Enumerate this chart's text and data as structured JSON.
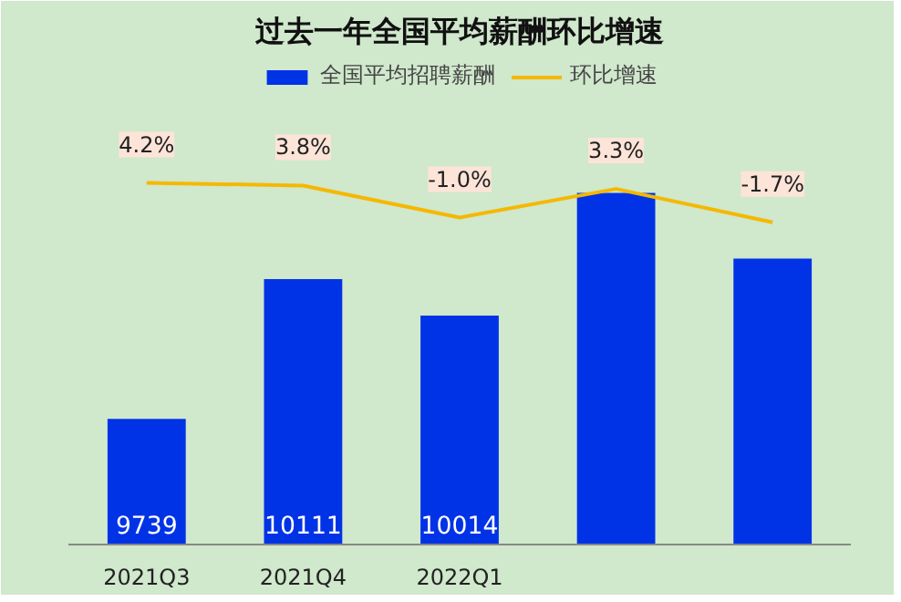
{
  "chart_data": {
    "type": "bar",
    "title": "过去一年全国平均薪酬环比增速",
    "categories": [
      "2021Q3",
      "2021Q4",
      "2022Q1",
      null,
      null
    ],
    "series": [
      {
        "name": "全国平均招聘薪酬",
        "color": "#0033e6",
        "values": [
          9739,
          10111,
          10014,
          10340,
          10165
        ],
        "value_labels": [
          "9739",
          "10111",
          "10014",
          null,
          null
        ]
      },
      {
        "name": "环比增速",
        "type": "line",
        "axis": "y2",
        "color": "#f5b800",
        "values": [
          4.2,
          3.8,
          -1.0,
          3.3,
          -1.7
        ],
        "value_labels": [
          "4.2%",
          "3.8%",
          "-1.0%",
          "3.3%",
          "-1.7%"
        ]
      }
    ],
    "ylim": [
      9405,
      10700
    ],
    "y2lim": [
      -50,
      23
    ],
    "tick_labels": "x",
    "legend": "top",
    "grid": false
  }
}
